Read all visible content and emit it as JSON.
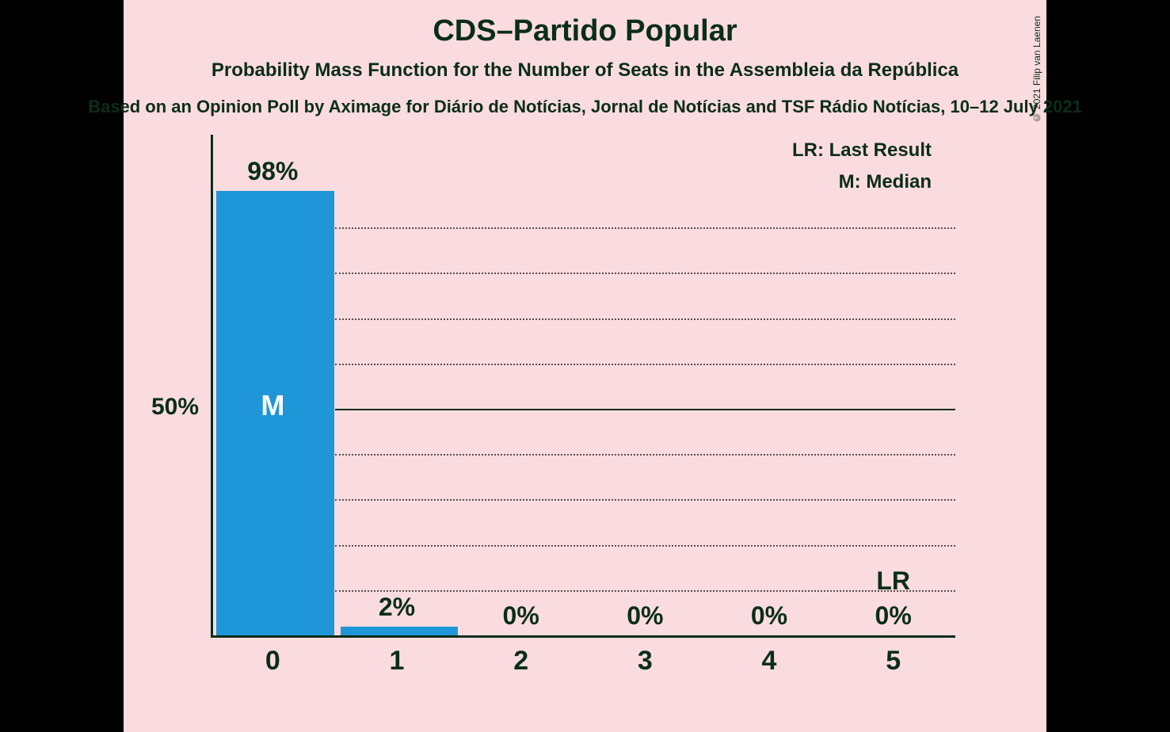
{
  "chart": {
    "type": "bar",
    "title": "CDS–Partido Popular",
    "title_fontsize": 38,
    "subtitle": "Probability Mass Function for the Number of Seats in the Assembleia da República",
    "subtitle_fontsize": 24,
    "caption": "Based on an Opinion Poll by Aximage for Diário de Notícias, Jornal de Notícias and TSF Rádio Notícias, 10–12 July 2021",
    "caption_fontsize": 22,
    "credit": "© 2021 Filip van Laenen",
    "background_color": "#fadce0",
    "title_color": "#0b2d18",
    "axis_color": "#0b2d18",
    "grid_color": "#5a4a4c",
    "bar_color": "#1e96d8",
    "bar_width_ratio": 0.95,
    "categories": [
      "0",
      "1",
      "2",
      "3",
      "4",
      "5"
    ],
    "values_pct": [
      98,
      2,
      0,
      0,
      0,
      0
    ],
    "value_labels": [
      "98%",
      "2%",
      "0%",
      "0%",
      "0%",
      "0%"
    ],
    "median_index": 0,
    "median_label": "M",
    "last_result_index": 5,
    "last_result_label": "LR",
    "legend": {
      "lr": "LR: Last Result",
      "m": "M: Median",
      "fontsize": 24
    },
    "y_axis": {
      "max_pct": 100,
      "grid_steps_pct": [
        10,
        20,
        30,
        40,
        50,
        60,
        70,
        80,
        90
      ],
      "major_tick_pct": 50,
      "major_tick_label": "50%",
      "tick_fontsize": 30
    },
    "x_axis": {
      "tick_fontsize": 34
    },
    "label_fontsize": 32,
    "marker_fontsize": 36
  }
}
